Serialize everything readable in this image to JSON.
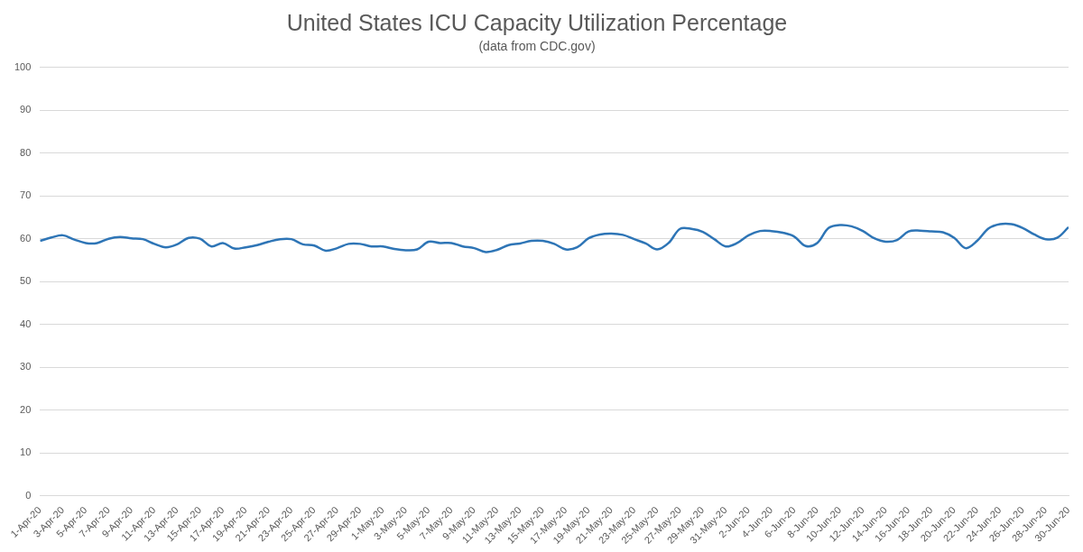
{
  "chart_data": {
    "type": "line",
    "title": "United States ICU Capacity Utilization Percentage",
    "subtitle": "(data from CDC.gov)",
    "categories": [
      "1-Apr-20",
      null,
      "3-Apr-20",
      null,
      "5-Apr-20",
      null,
      "7-Apr-20",
      null,
      "9-Apr-20",
      null,
      "11-Apr-20",
      null,
      "13-Apr-20",
      null,
      "15-Apr-20",
      null,
      "17-Apr-20",
      null,
      "19-Apr-20",
      null,
      "21-Apr-20",
      null,
      "23-Apr-20",
      null,
      "25-Apr-20",
      null,
      "27-Apr-20",
      null,
      "29-Apr-20",
      null,
      "1-May-20",
      null,
      "3-May-20",
      null,
      "5-May-20",
      null,
      "7-May-20",
      null,
      "9-May-20",
      null,
      "11-May-20",
      null,
      "13-May-20",
      null,
      "15-May-20",
      null,
      "17-May-20",
      null,
      "19-May-20",
      null,
      "21-May-20",
      null,
      "23-May-20",
      null,
      "25-May-20",
      null,
      "27-May-20",
      null,
      "29-May-20",
      null,
      "31-May-20",
      null,
      "2-Jun-20",
      null,
      "4-Jun-20",
      null,
      "6-Jun-20",
      null,
      "8-Jun-20",
      null,
      "10-Jun-20",
      null,
      "12-Jun-20",
      null,
      "14-Jun-20",
      null,
      "16-Jun-20",
      null,
      "18-Jun-20",
      null,
      "20-Jun-20",
      null,
      "22-Jun-20",
      null,
      "24-Jun-20",
      null,
      "26-Jun-20",
      null,
      "28-Jun-20",
      null,
      "30-Jun-20"
    ],
    "values": [
      59.5,
      60.3,
      60.8,
      59.8,
      59.0,
      59.0,
      60.0,
      60.4,
      60.1,
      59.9,
      58.8,
      58.0,
      58.7,
      60.2,
      60.0,
      58.2,
      59.0,
      57.7,
      58.0,
      58.5,
      59.3,
      59.9,
      59.9,
      58.7,
      58.4,
      57.2,
      57.8,
      58.8,
      58.8,
      58.2,
      58.2,
      57.6,
      57.3,
      57.5,
      59.3,
      59.0,
      59.0,
      58.2,
      57.8,
      56.9,
      57.4,
      58.5,
      58.9,
      59.5,
      59.5,
      58.8,
      57.5,
      58.0,
      60.1,
      61.0,
      61.2,
      60.9,
      59.9,
      58.9,
      57.5,
      59.0,
      62.3,
      62.3,
      61.6,
      59.9,
      58.2,
      59.0,
      60.8,
      61.8,
      61.8,
      61.4,
      60.5,
      58.3,
      59.0,
      62.5,
      63.2,
      62.9,
      61.8,
      60.1,
      59.3,
      59.7,
      61.7,
      61.9,
      61.7,
      61.5,
      60.2,
      57.8,
      59.5,
      62.4,
      63.4,
      63.4,
      62.5,
      61.0,
      59.9,
      60.2,
      62.7
    ],
    "color": "#2e75b6",
    "ylim": [
      0,
      100
    ],
    "yticks": [
      0,
      10,
      20,
      30,
      40,
      50,
      60,
      70,
      80,
      90,
      100
    ],
    "grid": true
  }
}
